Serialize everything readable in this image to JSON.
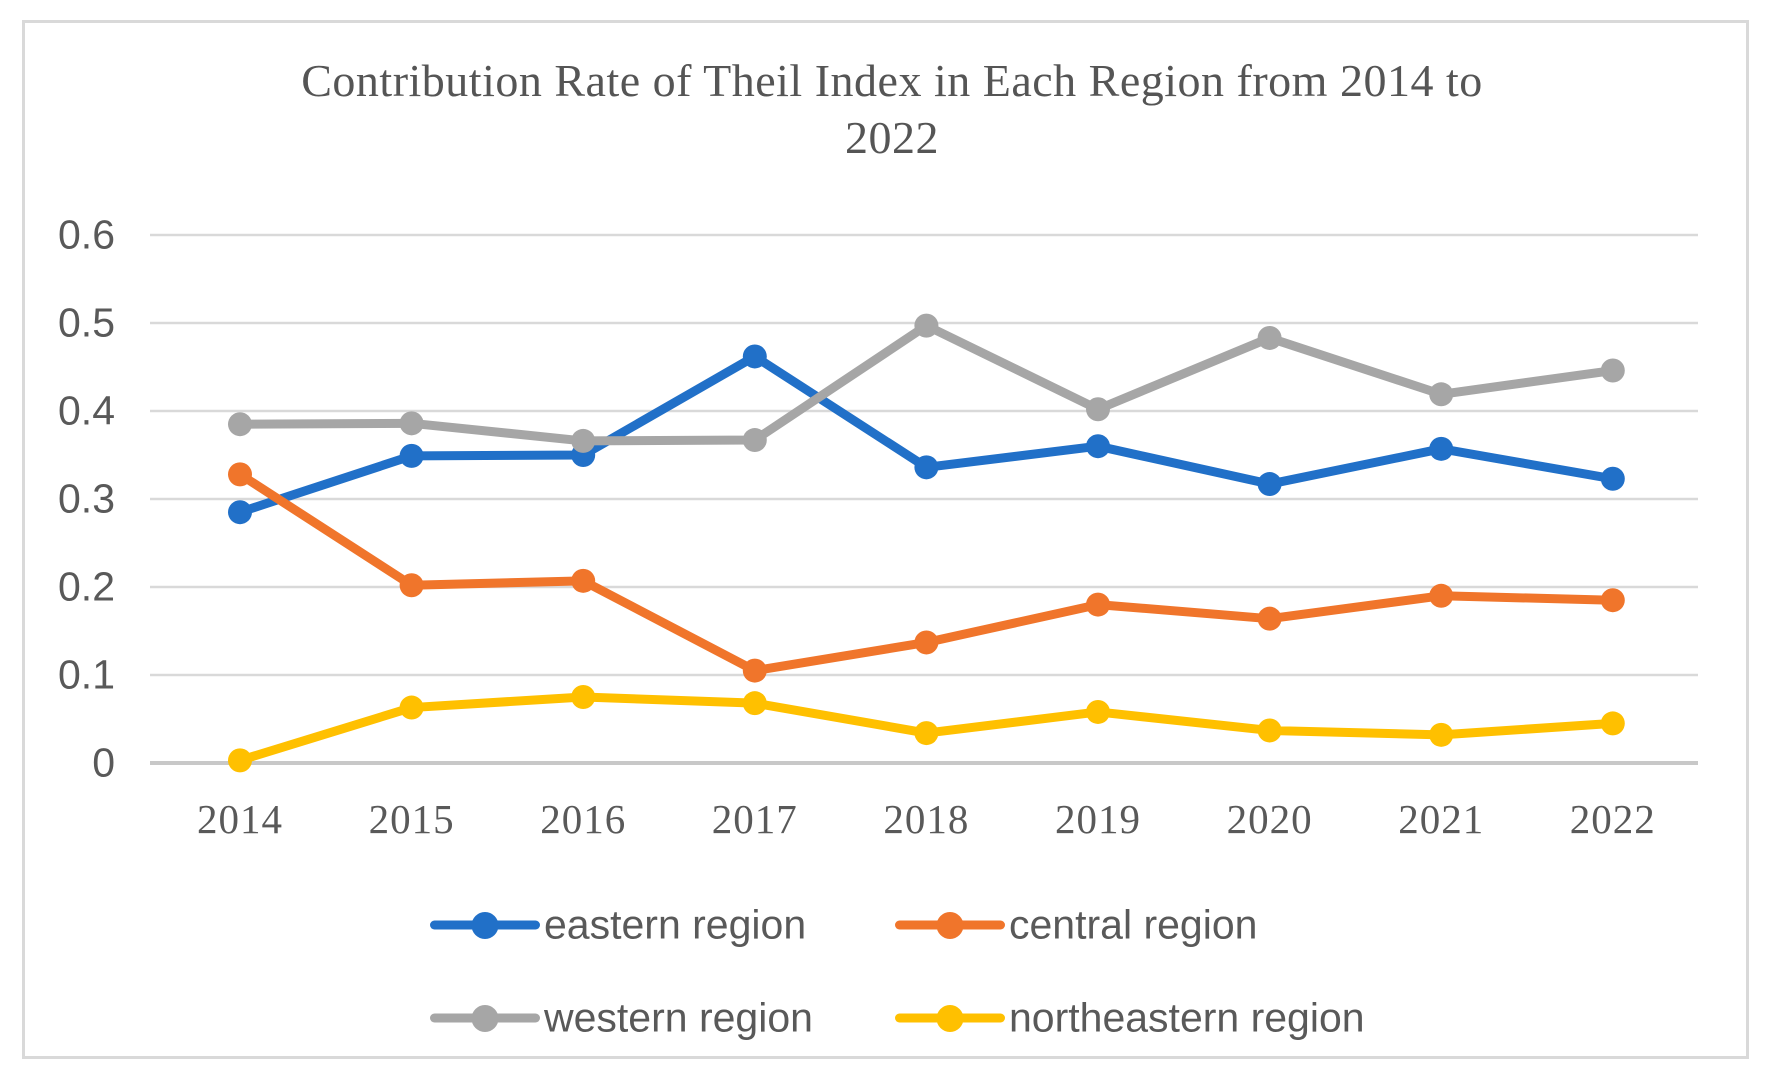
{
  "chart_data": {
    "type": "line",
    "title": "Contribution Rate of Theil Index in Each Region from 2014 to 2022",
    "title_lines": [
      "Contribution Rate of Theil Index in Each Region from 2014 to",
      "2022"
    ],
    "categories": [
      "2014",
      "2015",
      "2016",
      "2017",
      "2018",
      "2019",
      "2020",
      "2021",
      "2022"
    ],
    "series": [
      {
        "name": "eastern region",
        "color": "#2170C8",
        "values": [
          0.285,
          0.349,
          0.35,
          0.462,
          0.336,
          0.36,
          0.317,
          0.357,
          0.323
        ]
      },
      {
        "name": "central region",
        "color": "#F0752B",
        "values": [
          0.328,
          0.202,
          0.207,
          0.105,
          0.137,
          0.18,
          0.164,
          0.19,
          0.185
        ]
      },
      {
        "name": "western region",
        "color": "#A6A6A6",
        "values": [
          0.385,
          0.386,
          0.366,
          0.367,
          0.497,
          0.402,
          0.483,
          0.419,
          0.446
        ]
      },
      {
        "name": "northeastern region",
        "color": "#FFC000",
        "values": [
          0.003,
          0.063,
          0.075,
          0.068,
          0.034,
          0.058,
          0.037,
          0.032,
          0.045
        ]
      }
    ],
    "xlabel": "",
    "ylabel": "",
    "ylim": [
      0,
      0.6
    ],
    "ytick_step": 0.1,
    "yticks": [
      "0",
      "0.1",
      "0.2",
      "0.3",
      "0.4",
      "0.5",
      "0.6"
    ],
    "grid": true,
    "legend_position": "bottom",
    "legend_rows": [
      [
        0,
        1
      ],
      [
        2,
        3
      ]
    ]
  },
  "style": {
    "grid_color": "#D9D9D9",
    "zero_line_color": "#C8C8C8",
    "axis_text_color": "#595959",
    "frame_color": "#D9D9D9",
    "background": "#FFFFFF"
  }
}
